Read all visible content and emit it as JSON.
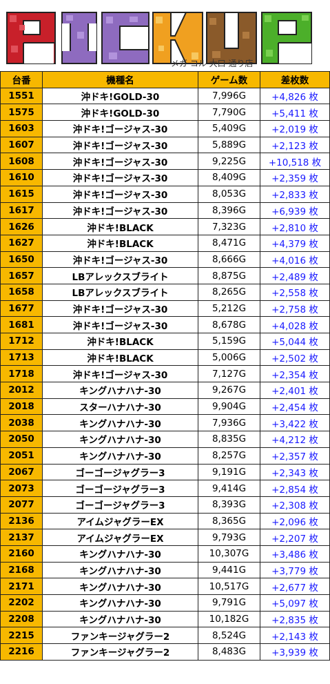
{
  "logo": {
    "text": "PICKUP",
    "letters": [
      "P",
      "I",
      "C",
      "K",
      "U",
      "P"
    ]
  },
  "subtitle": "メガ コル 大口 通り店",
  "columns": [
    "台番",
    "機種名",
    "ゲーム数",
    "差枚数"
  ],
  "rows": [
    [
      "1551",
      "沖ドキ!GOLD-30",
      "7,996G",
      "+4,826 枚"
    ],
    [
      "1575",
      "沖ドキ!GOLD-30",
      "7,790G",
      "+5,411 枚"
    ],
    [
      "1603",
      "沖ドキ!ゴージャス-30",
      "5,409G",
      "+2,019 枚"
    ],
    [
      "1607",
      "沖ドキ!ゴージャス-30",
      "5,889G",
      "+2,123 枚"
    ],
    [
      "1608",
      "沖ドキ!ゴージャス-30",
      "9,225G",
      "+10,518 枚"
    ],
    [
      "1610",
      "沖ドキ!ゴージャス-30",
      "8,409G",
      "+2,359 枚"
    ],
    [
      "1615",
      "沖ドキ!ゴージャス-30",
      "8,053G",
      "+2,833 枚"
    ],
    [
      "1617",
      "沖ドキ!ゴージャス-30",
      "8,396G",
      "+6,939 枚"
    ],
    [
      "1626",
      "沖ドキ!BLACK",
      "7,323G",
      "+2,810 枚"
    ],
    [
      "1627",
      "沖ドキ!BLACK",
      "8,471G",
      "+4,379 枚"
    ],
    [
      "1650",
      "沖ドキ!ゴージャス-30",
      "8,666G",
      "+4,016 枚"
    ],
    [
      "1657",
      "LBアレックスブライト",
      "8,875G",
      "+2,489 枚"
    ],
    [
      "1658",
      "LBアレックスブライト",
      "8,265G",
      "+2,558 枚"
    ],
    [
      "1677",
      "沖ドキ!ゴージャス-30",
      "5,212G",
      "+2,758 枚"
    ],
    [
      "1681",
      "沖ドキ!ゴージャス-30",
      "8,678G",
      "+4,028 枚"
    ],
    [
      "1712",
      "沖ドキ!BLACK",
      "5,159G",
      "+5,044 枚"
    ],
    [
      "1713",
      "沖ドキ!BLACK",
      "5,006G",
      "+2,502 枚"
    ],
    [
      "1718",
      "沖ドキ!ゴージャス-30",
      "7,127G",
      "+2,354 枚"
    ],
    [
      "2012",
      "キングハナハナ-30",
      "9,267G",
      "+2,401 枚"
    ],
    [
      "2018",
      "スターハナハナ-30",
      "9,904G",
      "+2,454 枚"
    ],
    [
      "2038",
      "キングハナハナ-30",
      "7,936G",
      "+3,422 枚"
    ],
    [
      "2050",
      "キングハナハナ-30",
      "8,835G",
      "+4,212 枚"
    ],
    [
      "2051",
      "キングハナハナ-30",
      "8,257G",
      "+2,357 枚"
    ],
    [
      "2067",
      "ゴーゴージャグラー3",
      "9,191G",
      "+2,343 枚"
    ],
    [
      "2073",
      "ゴーゴージャグラー3",
      "9,414G",
      "+2,854 枚"
    ],
    [
      "2077",
      "ゴーゴージャグラー3",
      "8,393G",
      "+2,308 枚"
    ],
    [
      "2136",
      "アイムジャグラーEX",
      "8,365G",
      "+2,096 枚"
    ],
    [
      "2137",
      "アイムジャグラーEX",
      "9,793G",
      "+2,207 枚"
    ],
    [
      "2160",
      "キングハナハナ-30",
      "10,307G",
      "+3,486 枚"
    ],
    [
      "2168",
      "キングハナハナ-30",
      "9,441G",
      "+3,779 枚"
    ],
    [
      "2171",
      "キングハナハナ-30",
      "10,517G",
      "+2,677 枚"
    ],
    [
      "2202",
      "キングハナハナ-30",
      "9,791G",
      "+5,097 枚"
    ],
    [
      "2208",
      "キングハナハナ-30",
      "10,182G",
      "+2,835 枚"
    ],
    [
      "2215",
      "ファンキージャグラー2",
      "8,524G",
      "+2,143 枚"
    ],
    [
      "2216",
      "ファンキージャグラー2",
      "8,483G",
      "+3,939 枚"
    ]
  ],
  "colors": {
    "header_bg": "#f7b800",
    "diff_text": "#1a1aff",
    "logo_p1": "#c8202a",
    "logo_i": "#8e6bbf",
    "logo_c": "#8e6bbf",
    "logo_k": "#f0a020",
    "logo_u": "#8a5a2a",
    "logo_p2": "#4caf2a"
  }
}
